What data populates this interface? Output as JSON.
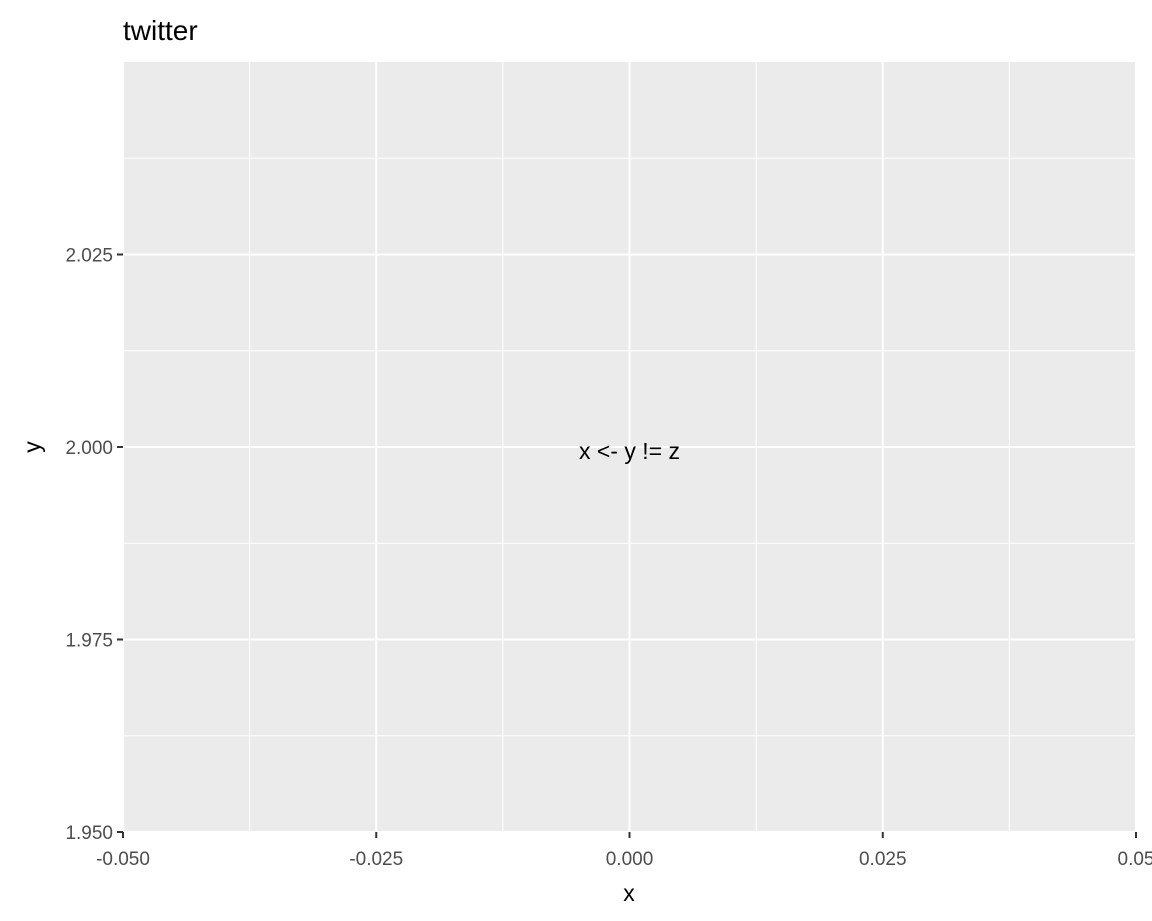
{
  "chart_data": {
    "type": "scatter",
    "title": "twitter",
    "xlabel": "x",
    "ylabel": "y",
    "xlim": [
      -0.05,
      0.05
    ],
    "ylim": [
      1.95,
      2.05
    ],
    "x_ticks": [
      -0.05,
      -0.025,
      0.0,
      0.025,
      0.05
    ],
    "x_tick_labels": [
      "-0.050",
      "-0.025",
      "0.000",
      "0.025",
      "0.05"
    ],
    "y_ticks": [
      1.95,
      1.975,
      2.0,
      2.025
    ],
    "y_tick_labels": [
      "1.950",
      "1.975",
      "2.000",
      "2.025"
    ],
    "grid": true,
    "annotations": [
      {
        "x": 0.0,
        "y": 2.0,
        "text": "x <- y != z"
      }
    ],
    "colors": {
      "panel_background": "#ebebeb",
      "grid": "#ffffff",
      "tick_text": "#4d4d4d",
      "text": "#000000"
    }
  }
}
